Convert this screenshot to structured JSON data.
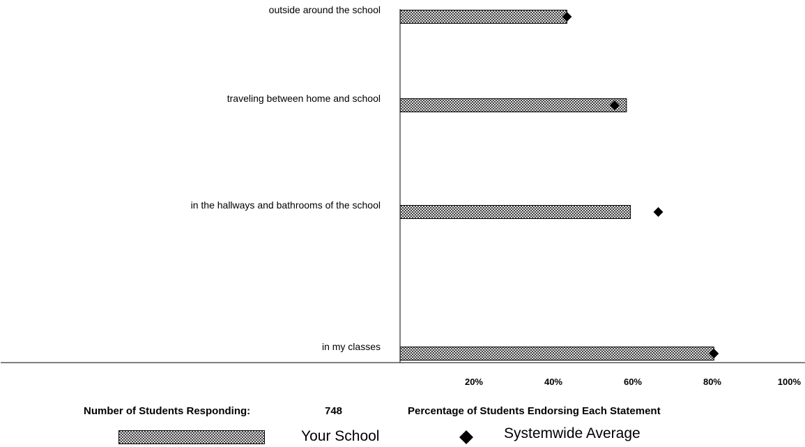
{
  "chart_data": {
    "type": "bar",
    "orientation": "horizontal",
    "categories": [
      "outside around the school",
      "traveling between home and school",
      "in the hallways and bathrooms of the school",
      "in my classes"
    ],
    "series": [
      {
        "name": "Your School",
        "type": "bar",
        "values": [
          42,
          57,
          58,
          79
        ],
        "color": "#000000",
        "pattern": "crosshatch"
      },
      {
        "name": "Systemwide Average",
        "type": "marker",
        "marker": "diamond",
        "values": [
          42,
          54,
          65,
          79
        ],
        "color": "#000000"
      }
    ],
    "xlim": [
      0,
      100
    ],
    "xticks": [
      20,
      40,
      60,
      80,
      100
    ],
    "tick_labels": [
      "20%",
      "40%",
      "60%",
      "80%",
      "100%"
    ],
    "xlabel": "Percentage of Students Endorsing Each Statement",
    "grid": false,
    "legend_position": "bottom"
  },
  "footer": {
    "responding_label": "Number of Students Responding:",
    "responding_count": "748",
    "axis_title": "Percentage of Students Endorsing Each Statement"
  },
  "legend": {
    "your_school": "Your School",
    "systemwide": "Systemwide Average"
  }
}
